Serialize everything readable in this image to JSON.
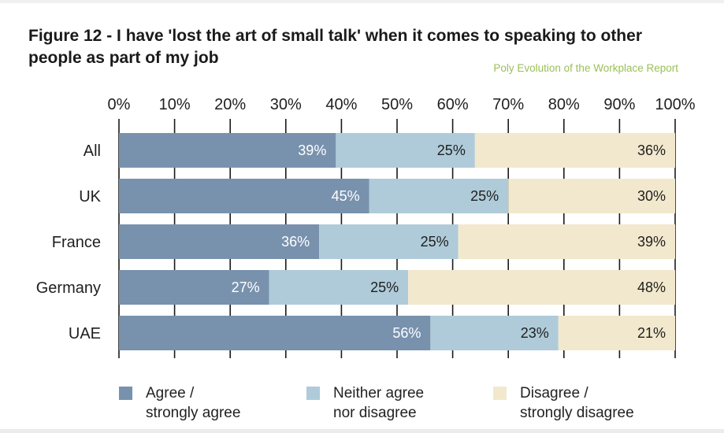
{
  "title": "Figure 12 - I have 'lost the art of small talk' when it comes to speaking to other people as part of my job",
  "source": "Poly Evolution of the Workplace Report",
  "chart_data": {
    "type": "bar",
    "orientation": "horizontal",
    "stacked": true,
    "title": "Figure 12 - I have 'lost the art of small talk' when it comes to speaking to other people as part of my job",
    "categories": [
      "All",
      "UK",
      "France",
      "Germany",
      "UAE"
    ],
    "series": [
      {
        "name": "Agree / strongly agree",
        "values": [
          39,
          45,
          36,
          27,
          56
        ],
        "color": "#7892ae",
        "label_color": "#ffffff"
      },
      {
        "name": "Neither agree nor disagree",
        "values": [
          25,
          25,
          25,
          25,
          23
        ],
        "color": "#afcbd9",
        "label_color": "#1f1f1f"
      },
      {
        "name": "Disagree / strongly disagree",
        "values": [
          36,
          30,
          39,
          48,
          21
        ],
        "color": "#f2e8cd",
        "label_color": "#1f1f1f"
      }
    ],
    "value_labels": [
      [
        "39%",
        "25%",
        "36%"
      ],
      [
        "45%",
        "25%",
        "30%"
      ],
      [
        "36%",
        "25%",
        "39%"
      ],
      [
        "27%",
        "25%",
        "48%"
      ],
      [
        "56%",
        "23%",
        "21%"
      ]
    ],
    "xaxis": {
      "position": "top",
      "ticks": [
        0,
        10,
        20,
        30,
        40,
        50,
        60,
        70,
        80,
        90,
        100
      ],
      "tick_labels": [
        "0%",
        "10%",
        "20%",
        "30%",
        "40%",
        "50%",
        "60%",
        "70%",
        "80%",
        "90%",
        "100%"
      ],
      "range": [
        0,
        100
      ]
    },
    "legend": {
      "position": "bottom",
      "items": [
        "Agree /\nstrongly agree",
        "Neither agree\nnor disagree",
        "Disagree /\nstrongly disagree"
      ]
    }
  }
}
